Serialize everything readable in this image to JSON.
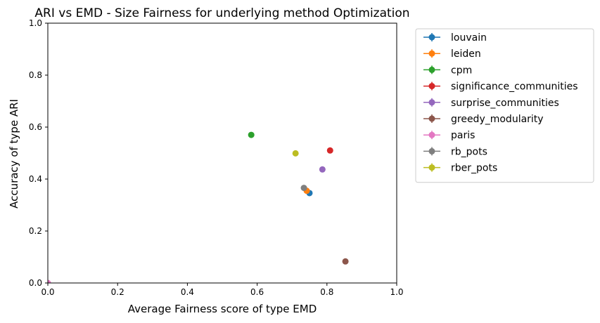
{
  "chart_data": {
    "type": "scatter",
    "title": "ARI vs EMD - Size Fairness for underlying method Optimization",
    "xlabel": "Average Fairness score of type EMD",
    "ylabel": "Accuracy of type ARI",
    "xlim": [
      0.0,
      1.0
    ],
    "ylim": [
      0.0,
      1.0
    ],
    "xticks": [
      "0.0",
      "0.2",
      "0.4",
      "0.6",
      "0.8",
      "1.0"
    ],
    "yticks": [
      "0.0",
      "0.2",
      "0.4",
      "0.6",
      "0.8",
      "1.0"
    ],
    "grid": false,
    "legend_position": "outside-right",
    "series": [
      {
        "name": "louvain",
        "color": "#1f77b4",
        "x": 0.75,
        "y": 0.346
      },
      {
        "name": "leiden",
        "color": "#ff7f0e",
        "x": 0.742,
        "y": 0.355
      },
      {
        "name": "cpm",
        "color": "#2ca02c",
        "x": 0.583,
        "y": 0.57
      },
      {
        "name": "significance_communities",
        "color": "#d62728",
        "x": 0.809,
        "y": 0.51
      },
      {
        "name": "surprise_communities",
        "color": "#9467bd",
        "x": 0.787,
        "y": 0.437
      },
      {
        "name": "greedy_modularity",
        "color": "#8c564b",
        "x": 0.853,
        "y": 0.083
      },
      {
        "name": "paris",
        "color": "#e377c2",
        "x": 0.0,
        "y": 0.0
      },
      {
        "name": "rb_pots",
        "color": "#7f7f7f",
        "x": 0.734,
        "y": 0.366
      },
      {
        "name": "rber_pots",
        "color": "#bcbd22",
        "x": 0.71,
        "y": 0.499
      }
    ]
  }
}
